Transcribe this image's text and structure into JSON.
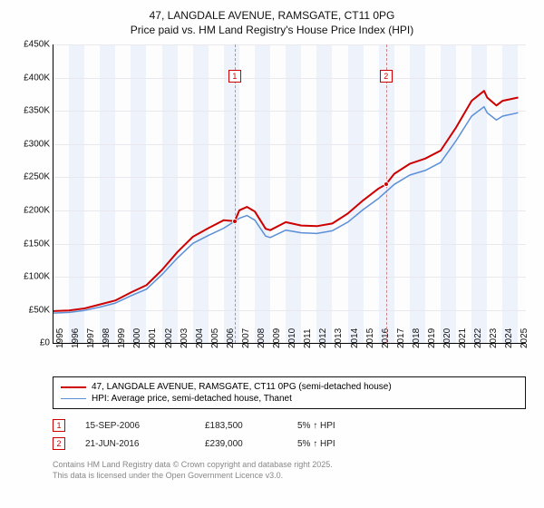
{
  "title": {
    "line1": "47, LANGDALE AVENUE, RAMSGATE, CT11 0PG",
    "line2": "Price paid vs. HM Land Registry's House Price Index (HPI)"
  },
  "chart": {
    "type": "line",
    "background_color": "#fdfdfd",
    "band_color": "#eef2fb",
    "grid_color": "#e8e8ee",
    "xlim": [
      1995,
      2025.5
    ],
    "ylim": [
      0,
      450000
    ],
    "ytick_step": 50000,
    "ytick_format": "£{}K",
    "ytick_labels": [
      "£0",
      "£50K",
      "£100K",
      "£150K",
      "£200K",
      "£250K",
      "£300K",
      "£350K",
      "£400K",
      "£450K"
    ],
    "xticks": [
      1995,
      1996,
      1997,
      1998,
      1999,
      2000,
      2001,
      2002,
      2003,
      2004,
      2005,
      2006,
      2007,
      2008,
      2009,
      2010,
      2011,
      2012,
      2013,
      2014,
      2015,
      2016,
      2017,
      2018,
      2019,
      2020,
      2021,
      2022,
      2023,
      2024,
      2025
    ],
    "axis_fontsize": 10,
    "title_fontsize": 12,
    "series": [
      {
        "name": "price_paid",
        "label": "47, LANGDALE AVENUE, RAMSGATE, CT11 0PG (semi-detached house)",
        "color": "#cc0000",
        "line_width": 2,
        "points": [
          [
            1995,
            48000
          ],
          [
            1996,
            49000
          ],
          [
            1997,
            52000
          ],
          [
            1998,
            58000
          ],
          [
            1999,
            64000
          ],
          [
            2000,
            76000
          ],
          [
            2001,
            87000
          ],
          [
            2002,
            110000
          ],
          [
            2003,
            137000
          ],
          [
            2004,
            160000
          ],
          [
            2005,
            173000
          ],
          [
            2006,
            185000
          ],
          [
            2006.7,
            183500
          ],
          [
            2007,
            200000
          ],
          [
            2007.5,
            205000
          ],
          [
            2008,
            198000
          ],
          [
            2008.7,
            172000
          ],
          [
            2009,
            170000
          ],
          [
            2010,
            182000
          ],
          [
            2011,
            177000
          ],
          [
            2012,
            176000
          ],
          [
            2013,
            180000
          ],
          [
            2014,
            195000
          ],
          [
            2015,
            215000
          ],
          [
            2016,
            233000
          ],
          [
            2016.47,
            239000
          ],
          [
            2017,
            255000
          ],
          [
            2018,
            270000
          ],
          [
            2019,
            278000
          ],
          [
            2020,
            290000
          ],
          [
            2021,
            325000
          ],
          [
            2022,
            365000
          ],
          [
            2022.8,
            380000
          ],
          [
            2023,
            370000
          ],
          [
            2023.6,
            358000
          ],
          [
            2024,
            365000
          ],
          [
            2025,
            370000
          ]
        ]
      },
      {
        "name": "hpi",
        "label": "HPI: Average price, semi-detached house, Thanet",
        "color": "#5b8fd6",
        "line_width": 1.5,
        "points": [
          [
            1995,
            45000
          ],
          [
            1996,
            46000
          ],
          [
            1997,
            49000
          ],
          [
            1998,
            54000
          ],
          [
            1999,
            60000
          ],
          [
            2000,
            71000
          ],
          [
            2001,
            81000
          ],
          [
            2002,
            103000
          ],
          [
            2003,
            128000
          ],
          [
            2004,
            150000
          ],
          [
            2005,
            162000
          ],
          [
            2006,
            173000
          ],
          [
            2007,
            188000
          ],
          [
            2007.5,
            192000
          ],
          [
            2008,
            185000
          ],
          [
            2008.7,
            161000
          ],
          [
            2009,
            159000
          ],
          [
            2010,
            170000
          ],
          [
            2011,
            166000
          ],
          [
            2012,
            165000
          ],
          [
            2013,
            169000
          ],
          [
            2014,
            182000
          ],
          [
            2015,
            201000
          ],
          [
            2016,
            218000
          ],
          [
            2017,
            239000
          ],
          [
            2018,
            253000
          ],
          [
            2019,
            260000
          ],
          [
            2020,
            272000
          ],
          [
            2021,
            305000
          ],
          [
            2022,
            342000
          ],
          [
            2022.8,
            356000
          ],
          [
            2023,
            347000
          ],
          [
            2023.6,
            336000
          ],
          [
            2024,
            342000
          ],
          [
            2025,
            347000
          ]
        ]
      }
    ],
    "sale_markers": [
      {
        "id": "1",
        "year": 2006.7,
        "value": 183500,
        "box_y": 402000
      },
      {
        "id": "2",
        "year": 2016.47,
        "value": 239000,
        "box_y": 402000
      }
    ],
    "marker_box_border": "#cc0000",
    "marker_box_text": "#cc0000",
    "marker_dash_color": "#cc8888"
  },
  "legend": {
    "border_color": "#111111",
    "fontsize": 10
  },
  "sales_table": {
    "rows": [
      {
        "id": "1",
        "date": "15-SEP-2006",
        "price": "£183,500",
        "pct": "5% ↑ HPI"
      },
      {
        "id": "2",
        "date": "21-JUN-2016",
        "price": "£239,000",
        "pct": "5% ↑ HPI"
      }
    ]
  },
  "footer": {
    "line1": "Contains HM Land Registry data © Crown copyright and database right 2025.",
    "line2": "This data is licensed under the Open Government Licence v3.0."
  }
}
